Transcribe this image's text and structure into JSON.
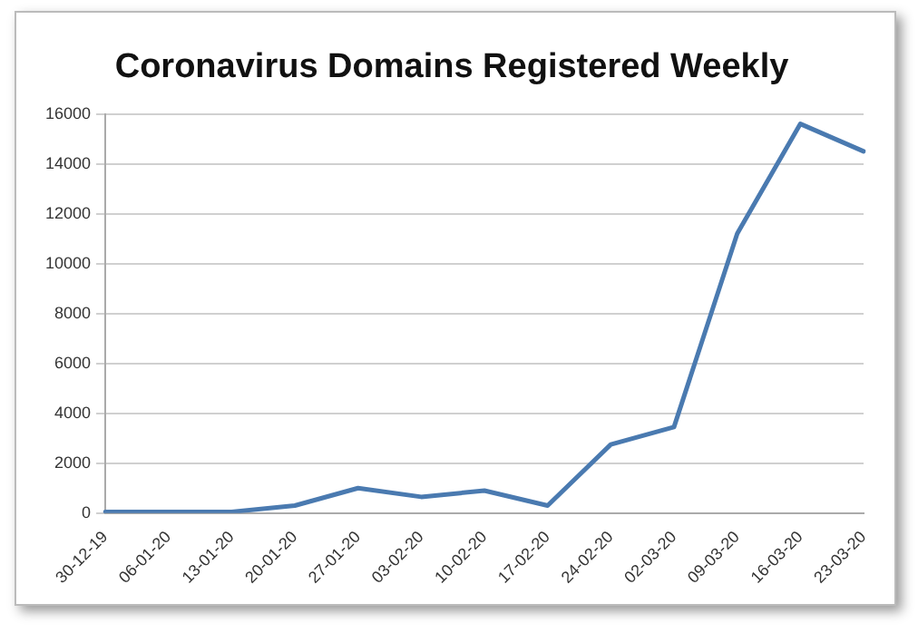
{
  "chart_data": {
    "type": "line",
    "title": "Coronavirus Domains Registered Weekly",
    "categories": [
      "30-12-19",
      "06-01-20",
      "13-01-20",
      "20-01-20",
      "27-01-20",
      "03-02-20",
      "10-02-20",
      "17-02-20",
      "24-02-20",
      "02-03-20",
      "09-03-20",
      "16-03-20",
      "23-03-20"
    ],
    "series": [
      {
        "color": "#4a7ab0",
        "values": [
          50,
          50,
          50,
          300,
          1000,
          650,
          900,
          300,
          2750,
          3450,
          11200,
          15600,
          14500
        ]
      }
    ],
    "ylim": [
      0,
      16000
    ],
    "yticks": [
      0,
      2000,
      4000,
      6000,
      8000,
      10000,
      12000,
      14000,
      16000
    ],
    "grid": "y",
    "legend": false,
    "marker": "none",
    "line_style": "solid"
  }
}
